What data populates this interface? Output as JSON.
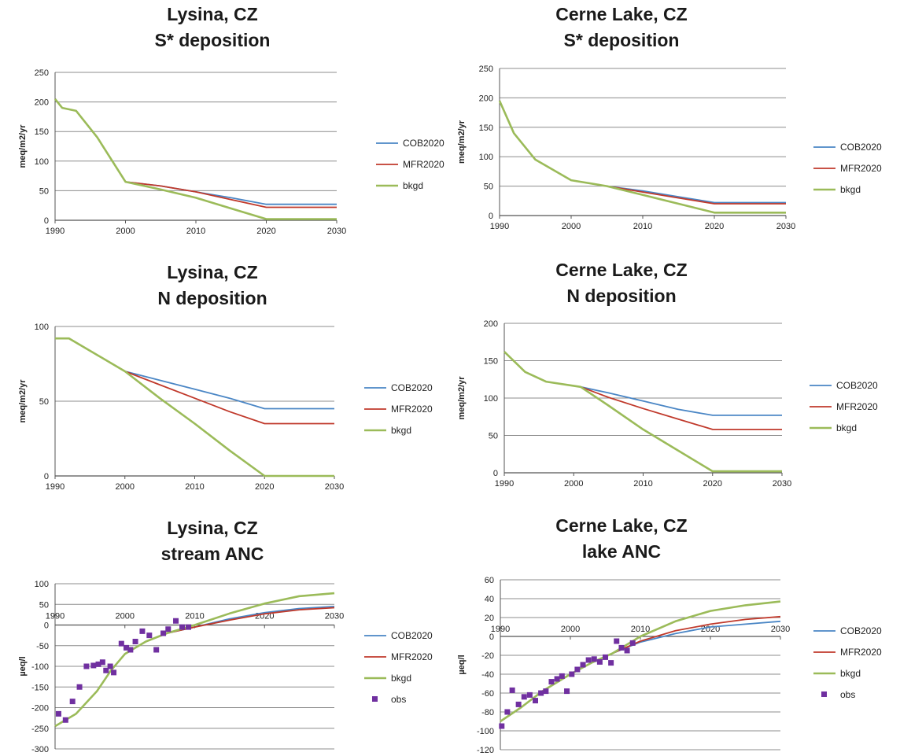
{
  "colors": {
    "COB2020": "#4a86c5",
    "MFR2020": "#c0392b",
    "bkgd": "#9bbb59",
    "obs": "#7030a0",
    "grid": "#8c8c8c",
    "axis": "#555555"
  },
  "chart_data": [
    {
      "type": "line",
      "title": "Lysina, CZ",
      "subtitle": "S* deposition",
      "ylabel": "meq/m2/yr",
      "xlim": [
        1990,
        2030
      ],
      "ylim": [
        0,
        250
      ],
      "xticks": [
        1990,
        2000,
        2010,
        2020,
        2030
      ],
      "yticks": [
        0,
        50,
        100,
        150,
        200,
        250
      ],
      "legend": "right",
      "series": [
        {
          "name": "COB2020",
          "x": [
            1990,
            1991,
            1993,
            1996,
            2000,
            2005,
            2010,
            2015,
            2020,
            2030
          ],
          "y": [
            205,
            190,
            185,
            140,
            65,
            58,
            48,
            38,
            27,
            27
          ]
        },
        {
          "name": "MFR2020",
          "x": [
            1990,
            1991,
            1993,
            1996,
            2000,
            2005,
            2010,
            2015,
            2020,
            2030
          ],
          "y": [
            205,
            190,
            185,
            140,
            65,
            58,
            48,
            35,
            22,
            22
          ]
        },
        {
          "name": "bkgd",
          "x": [
            1990,
            1991,
            1993,
            1996,
            2000,
            2005,
            2010,
            2015,
            2020,
            2030
          ],
          "y": [
            205,
            190,
            185,
            140,
            65,
            52,
            38,
            20,
            2,
            2
          ]
        }
      ]
    },
    {
      "type": "line",
      "title": "Cerne Lake, CZ",
      "subtitle": "S* deposition",
      "ylabel": "meq/m2/yr",
      "xlim": [
        1990,
        2030
      ],
      "ylim": [
        0,
        250
      ],
      "xticks": [
        1990,
        2000,
        2010,
        2020,
        2030
      ],
      "yticks": [
        0,
        50,
        100,
        150,
        200,
        250
      ],
      "legend": "right",
      "series": [
        {
          "name": "COB2020",
          "x": [
            1990,
            1992,
            1995,
            2000,
            2005,
            2010,
            2015,
            2020,
            2030
          ],
          "y": [
            195,
            140,
            95,
            60,
            50,
            42,
            32,
            22,
            22
          ]
        },
        {
          "name": "MFR2020",
          "x": [
            1990,
            1992,
            1995,
            2000,
            2005,
            2010,
            2015,
            2020,
            2030
          ],
          "y": [
            195,
            140,
            95,
            60,
            50,
            40,
            30,
            20,
            20
          ]
        },
        {
          "name": "bkgd",
          "x": [
            1990,
            1992,
            1995,
            2000,
            2005,
            2010,
            2015,
            2020,
            2030
          ],
          "y": [
            195,
            140,
            95,
            60,
            50,
            35,
            20,
            5,
            5
          ]
        }
      ]
    },
    {
      "type": "line",
      "title": "Lysina, CZ",
      "subtitle": "N deposition",
      "ylabel": "meq/m2/yr",
      "xlim": [
        1990,
        2030
      ],
      "ylim": [
        0,
        100
      ],
      "xticks": [
        1990,
        2000,
        2010,
        2020,
        2030
      ],
      "yticks": [
        0,
        50,
        100
      ],
      "legend": "right",
      "series": [
        {
          "name": "COB2020",
          "x": [
            1990,
            1992,
            2000,
            2005,
            2010,
            2015,
            2020,
            2030
          ],
          "y": [
            92,
            92,
            70,
            64,
            58,
            52,
            45,
            45
          ]
        },
        {
          "name": "MFR2020",
          "x": [
            1990,
            1992,
            2000,
            2005,
            2010,
            2015,
            2020,
            2030
          ],
          "y": [
            92,
            92,
            70,
            61,
            52,
            43,
            35,
            35
          ]
        },
        {
          "name": "bkgd",
          "x": [
            1990,
            1992,
            2000,
            2005,
            2010,
            2015,
            2020,
            2030
          ],
          "y": [
            92,
            92,
            70,
            52,
            35,
            17,
            0,
            0
          ]
        }
      ]
    },
    {
      "type": "line",
      "title": "Cerne Lake, CZ",
      "subtitle": "N deposition",
      "ylabel": "meq/m2/yr",
      "xlim": [
        1990,
        2030
      ],
      "ylim": [
        0,
        200
      ],
      "xticks": [
        1990,
        2000,
        2010,
        2020,
        2030
      ],
      "yticks": [
        0,
        50,
        100,
        150,
        200
      ],
      "legend": "right",
      "series": [
        {
          "name": "COB2020",
          "x": [
            1990,
            1993,
            1996,
            2001,
            2005,
            2010,
            2015,
            2020,
            2030
          ],
          "y": [
            162,
            135,
            122,
            115,
            107,
            96,
            85,
            77,
            77
          ]
        },
        {
          "name": "MFR2020",
          "x": [
            1990,
            1993,
            1996,
            2001,
            2005,
            2010,
            2015,
            2020,
            2030
          ],
          "y": [
            162,
            135,
            122,
            115,
            101,
            86,
            72,
            58,
            58
          ]
        },
        {
          "name": "bkgd",
          "x": [
            1990,
            1993,
            1996,
            2001,
            2005,
            2010,
            2015,
            2020,
            2030
          ],
          "y": [
            162,
            135,
            122,
            115,
            90,
            58,
            30,
            2,
            2
          ]
        }
      ]
    },
    {
      "type": "line",
      "title": "Lysina, CZ",
      "subtitle": "stream ANC",
      "ylabel": "µeq/l",
      "xlim": [
        1990,
        2030
      ],
      "ylim": [
        -300,
        100
      ],
      "xticks": [
        1990,
        2000,
        2010,
        2020,
        2030
      ],
      "yticks": [
        -300,
        -250,
        -200,
        -150,
        -100,
        -50,
        0,
        50,
        100
      ],
      "legend": "right",
      "series": [
        {
          "name": "COB2020",
          "x": [
            1990,
            1993,
            1996,
            1998,
            2000,
            2003,
            2006,
            2010,
            2015,
            2020,
            2025,
            2030
          ],
          "y": [
            -245,
            -215,
            -160,
            -110,
            -70,
            -40,
            -20,
            -5,
            15,
            30,
            40,
            45
          ]
        },
        {
          "name": "MFR2020",
          "x": [
            1990,
            1993,
            1996,
            1998,
            2000,
            2003,
            2006,
            2010,
            2015,
            2020,
            2025,
            2030
          ],
          "y": [
            -245,
            -215,
            -160,
            -110,
            -70,
            -40,
            -20,
            -5,
            12,
            27,
            37,
            42
          ]
        },
        {
          "name": "bkgd",
          "x": [
            1990,
            1993,
            1996,
            1998,
            2000,
            2003,
            2006,
            2010,
            2015,
            2020,
            2025,
            2030
          ],
          "y": [
            -245,
            -215,
            -160,
            -110,
            -70,
            -40,
            -20,
            0,
            28,
            52,
            70,
            77
          ]
        },
        {
          "name": "obs",
          "mode": "markers",
          "x": [
            1990.5,
            1991.5,
            1992.5,
            1993.5,
            1994.5,
            1995.5,
            1996.2,
            1996.8,
            1997.3,
            1997.9,
            1998.4,
            1999.5,
            2000.2,
            2000.8,
            2001.5,
            2002.5,
            2003.5,
            2004.5,
            2005.5,
            2006.2,
            2007.3,
            2008.2,
            2009.1
          ],
          "y": [
            -215,
            -230,
            -185,
            -150,
            -100,
            -98,
            -95,
            -90,
            -110,
            -100,
            -115,
            -45,
            -55,
            -60,
            -40,
            -15,
            -25,
            -60,
            -20,
            -10,
            10,
            -5,
            -5
          ]
        }
      ]
    },
    {
      "type": "line",
      "title": "Cerne Lake, CZ",
      "subtitle": "lake ANC",
      "ylabel": "µeq/l",
      "xlim": [
        1990,
        2030
      ],
      "ylim": [
        -120,
        60
      ],
      "xticks": [
        1990,
        2000,
        2010,
        2020,
        2030
      ],
      "yticks": [
        -120,
        -100,
        -80,
        -60,
        -40,
        -20,
        0,
        20,
        40,
        60
      ],
      "legend": "right",
      "series": [
        {
          "name": "COB2020",
          "x": [
            1990,
            1993,
            1996,
            2000,
            2003,
            2006,
            2010,
            2015,
            2020,
            2025,
            2030
          ],
          "y": [
            -90,
            -75,
            -58,
            -40,
            -28,
            -18,
            -6,
            3,
            10,
            13,
            16
          ]
        },
        {
          "name": "MFR2020",
          "x": [
            1990,
            1993,
            1996,
            2000,
            2003,
            2006,
            2010,
            2015,
            2020,
            2025,
            2030
          ],
          "y": [
            -90,
            -75,
            -58,
            -40,
            -28,
            -18,
            -5,
            6,
            13,
            18,
            21
          ]
        },
        {
          "name": "bkgd",
          "x": [
            1990,
            1993,
            1996,
            2000,
            2003,
            2006,
            2010,
            2015,
            2020,
            2025,
            2030
          ],
          "y": [
            -90,
            -75,
            -58,
            -40,
            -28,
            -18,
            0,
            16,
            27,
            33,
            37
          ]
        },
        {
          "name": "obs",
          "mode": "markers",
          "x": [
            1990.2,
            1991.0,
            1991.7,
            1992.6,
            1993.4,
            1994.2,
            1995.0,
            1995.8,
            1996.5,
            1997.3,
            1998.1,
            1998.8,
            1999.5,
            2000.2,
            2001.0,
            2001.8,
            2002.6,
            2003.4,
            2004.2,
            2005.0,
            2005.8,
            2006.6,
            2007.3,
            2008.1,
            2008.9
          ],
          "y": [
            -95,
            -80,
            -57,
            -72,
            -64,
            -62,
            -68,
            -60,
            -58,
            -48,
            -45,
            -42,
            -58,
            -40,
            -35,
            -30,
            -25,
            -24,
            -27,
            -22,
            -28,
            -5,
            -12,
            -15,
            -7
          ]
        }
      ]
    }
  ]
}
